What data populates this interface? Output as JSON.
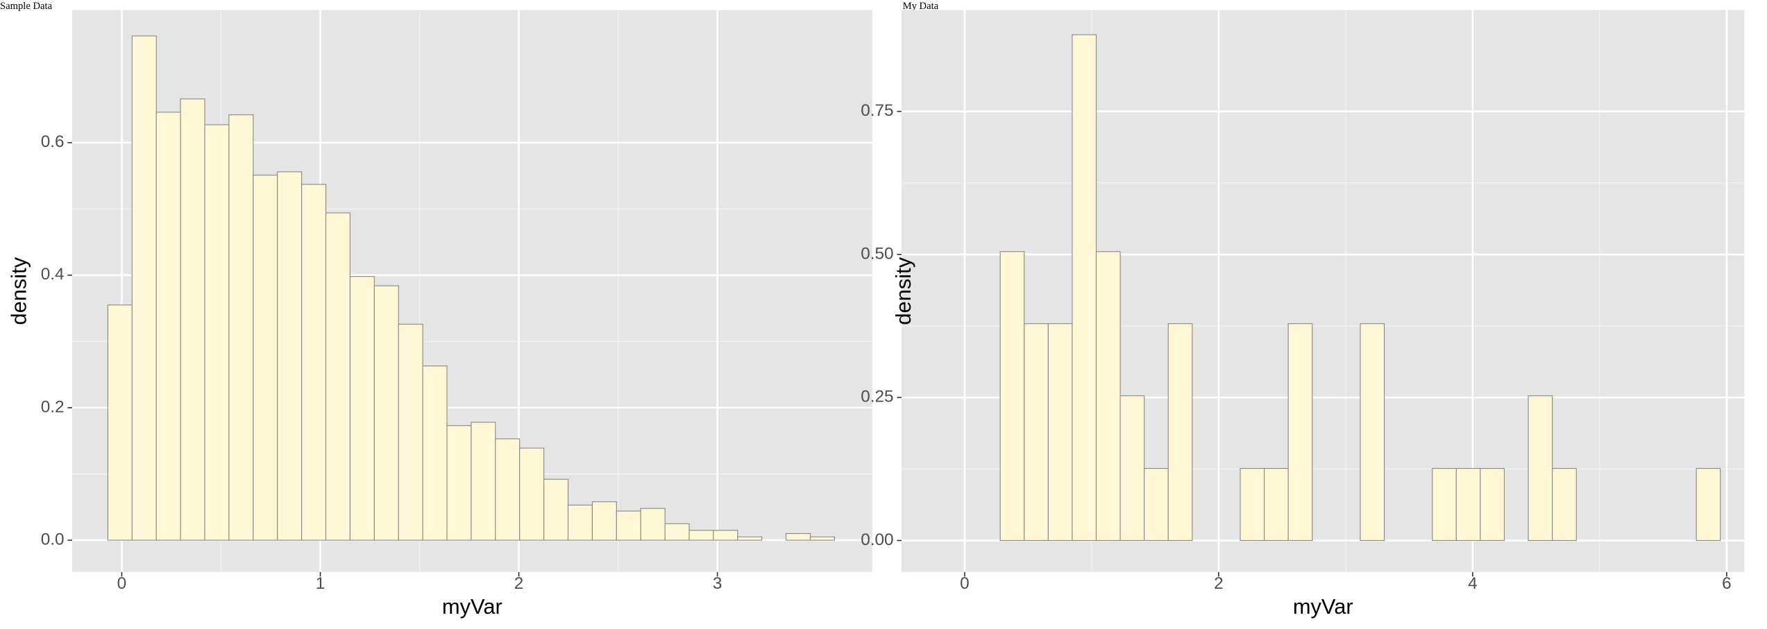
{
  "chart_data": [
    {
      "type": "histogram",
      "title": "Sample Data",
      "x_label": "myVar",
      "y_label": "density",
      "bins": [
        -0.07,
        0.052,
        0.174,
        0.296,
        0.418,
        0.54,
        0.662,
        0.784,
        0.906,
        1.028,
        1.15,
        1.272,
        1.394,
        1.516,
        1.638,
        1.76,
        1.882,
        2.004,
        2.126,
        2.248,
        2.37,
        2.492,
        2.614,
        2.736,
        2.858,
        2.98,
        3.102,
        3.224,
        3.346,
        3.468,
        3.59
      ],
      "values": [
        0.355,
        0.761,
        0.646,
        0.666,
        0.627,
        0.642,
        0.551,
        0.556,
        0.537,
        0.494,
        0.398,
        0.384,
        0.326,
        0.263,
        0.173,
        0.178,
        0.153,
        0.139,
        0.092,
        0.053,
        0.058,
        0.044,
        0.048,
        0.025,
        0.015,
        0.015,
        0.005,
        0,
        0.01,
        0.005
      ],
      "color": "#fff7d6",
      "xlim": [
        -0.25,
        3.78
      ],
      "xticks": [
        0,
        1,
        2,
        3
      ],
      "ylim": [
        -0.048,
        0.8
      ],
      "yticks": [
        {
          "value": 0,
          "label": "0.0"
        },
        0.2,
        0.4,
        0.6
      ],
      "grid": true
    },
    {
      "type": "histogram",
      "title": "My Data",
      "x_label": "myVar",
      "y_label": "density",
      "bins": [
        0.28,
        0.469,
        0.658,
        0.847,
        1.036,
        1.225,
        1.414,
        1.603,
        1.792,
        1.981,
        2.17,
        2.359,
        2.548,
        2.737,
        2.926,
        3.115,
        3.304,
        3.493,
        3.682,
        3.871,
        4.06,
        4.249,
        4.438,
        4.627,
        4.816,
        5.005,
        5.194,
        5.383,
        5.572,
        5.761,
        5.95
      ],
      "values": [
        0.505,
        0.379,
        0.379,
        0.884,
        0.505,
        0.253,
        0.126,
        0.379,
        0,
        0,
        0.126,
        0.126,
        0.379,
        0,
        0,
        0.379,
        0,
        0,
        0.126,
        0.126,
        0.126,
        0,
        0.253,
        0.126,
        0,
        0,
        0,
        0,
        0,
        0.126
      ],
      "color": "#fff7d6",
      "xlim": [
        -0.497,
        6.14
      ],
      "xticks": [
        0,
        2,
        4,
        6
      ],
      "ylim": [
        -0.055,
        0.927
      ],
      "yticks": [
        {
          "value": 0,
          "label": "0.00"
        },
        0.25,
        {
          "value": 0.5,
          "label": "0.50"
        },
        0.75
      ],
      "grid": true
    }
  ]
}
